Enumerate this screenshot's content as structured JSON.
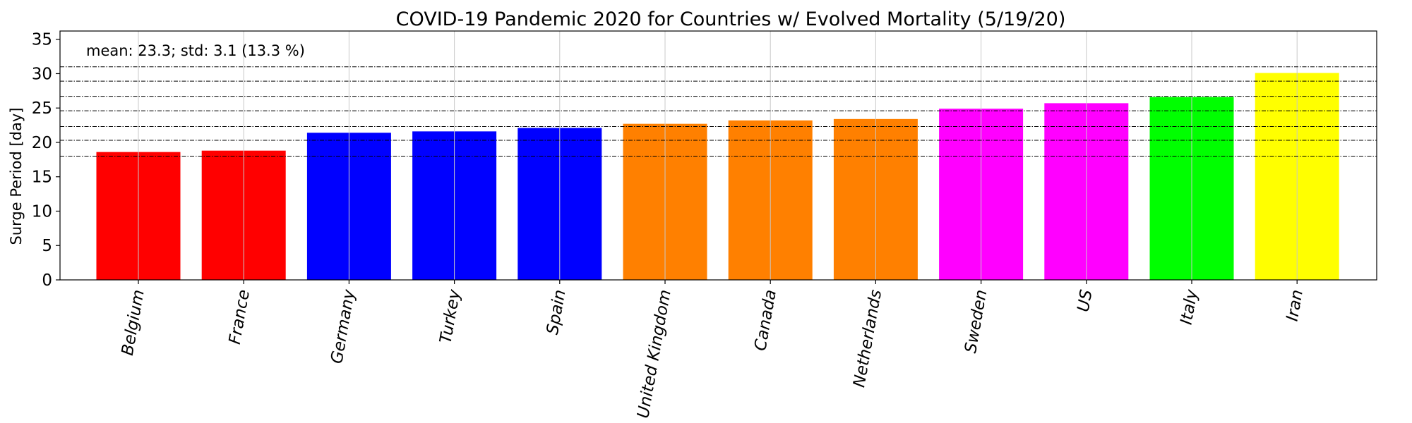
{
  "chart_data": {
    "type": "bar",
    "title": "COVID-19 Pandemic 2020 for Countries w/ Evolved Mortality (5/19/20)",
    "xlabel": "",
    "ylabel": "Surge Period [day]",
    "ylim": [
      0,
      36.2
    ],
    "yticks": [
      "0",
      "5",
      "10",
      "15",
      "20",
      "25",
      "30",
      "35"
    ],
    "categories": [
      "Belgium",
      "France",
      "Germany",
      "Turkey",
      "Spain",
      "United Kingdom",
      "Canada",
      "Netherlands",
      "Sweden",
      "US",
      "Italy",
      "Iran"
    ],
    "values": [
      18.6,
      18.8,
      21.4,
      21.6,
      22.1,
      22.7,
      23.2,
      23.4,
      24.9,
      25.7,
      26.6,
      30.1
    ],
    "bar_colors": [
      "#ff0000",
      "#ff0000",
      "#0000ff",
      "#0000ff",
      "#0000ff",
      "#ff8000",
      "#ff8000",
      "#ff8000",
      "#ff00ff",
      "#ff00ff",
      "#00ff00",
      "#ffff00"
    ],
    "reference_lines": [
      18.0,
      20.3,
      22.3,
      24.6,
      26.7,
      28.9,
      31.0
    ],
    "annotation": "mean: 23.3; std: 3.1 (13.3 %)",
    "grid": "vertical",
    "legend": "none"
  }
}
